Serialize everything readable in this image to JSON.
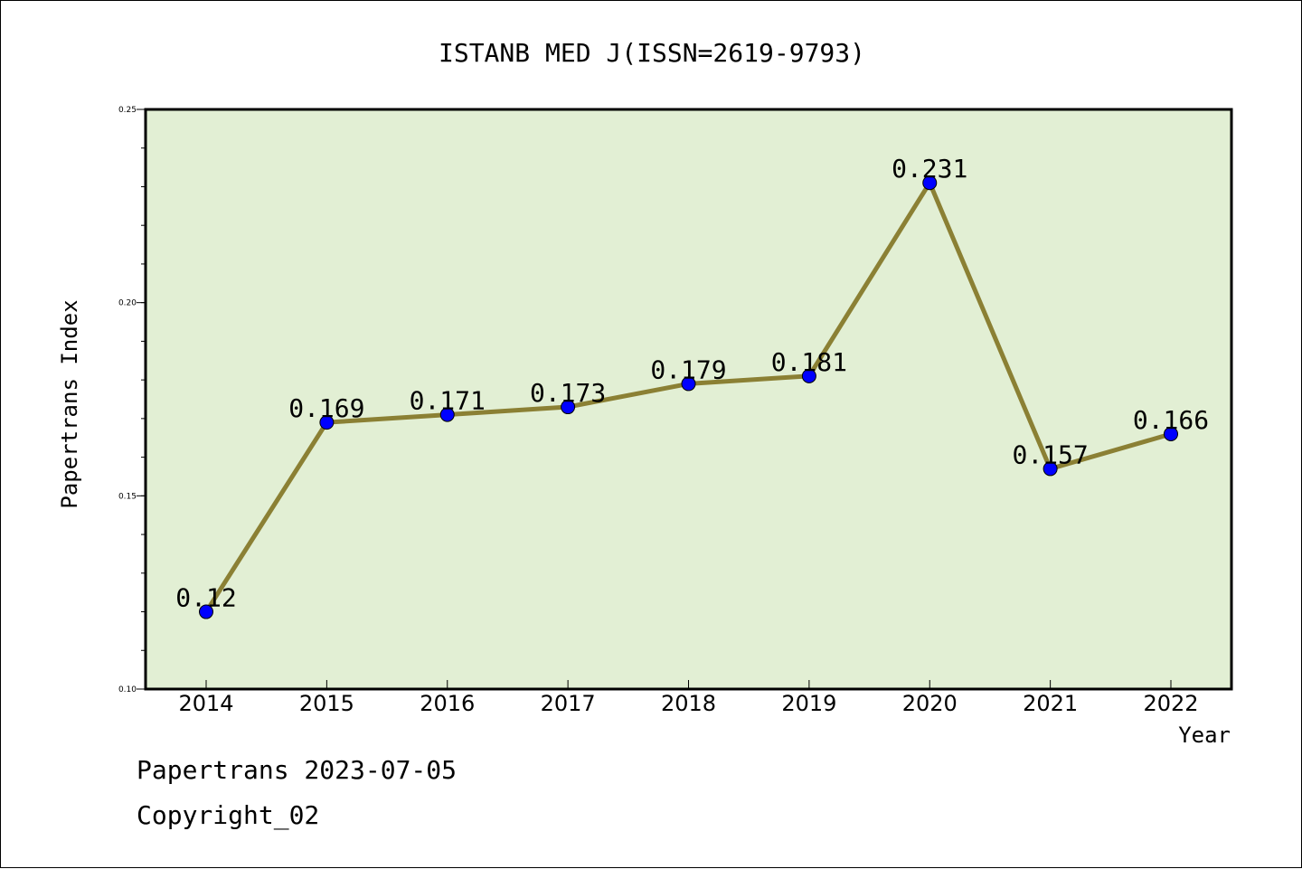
{
  "chart_data": {
    "type": "line",
    "title": "ISTANB MED J(ISSN=2619-9793)",
    "xlabel": "Year",
    "ylabel": "Papertrans Index",
    "x": [
      "2014",
      "2015",
      "2016",
      "2017",
      "2018",
      "2019",
      "2020",
      "2021",
      "2022"
    ],
    "series": [
      {
        "values": [
          0.12,
          0.169,
          0.171,
          0.173,
          0.179,
          0.181,
          0.231,
          0.157,
          0.166
        ],
        "labels": [
          "0.12",
          "0.169",
          "0.171",
          "0.173",
          "0.179",
          "0.181",
          "0.231",
          "0.157",
          "0.166"
        ],
        "line_color": "#8b8034",
        "marker_color": "#0000ff"
      }
    ],
    "ylim": [
      0.1,
      0.25
    ],
    "yticks": [
      "0.10",
      "0.15",
      "0.20",
      "0.25"
    ],
    "yticks_values": [
      0.1,
      0.15,
      0.2,
      0.25
    ],
    "y_minor_step": 0.01,
    "grid": false,
    "legend": "none",
    "plot_background": "#e2efd4"
  },
  "footer": {
    "line1": "Papertrans 2023-07-05",
    "line2": "Copyright_02"
  }
}
